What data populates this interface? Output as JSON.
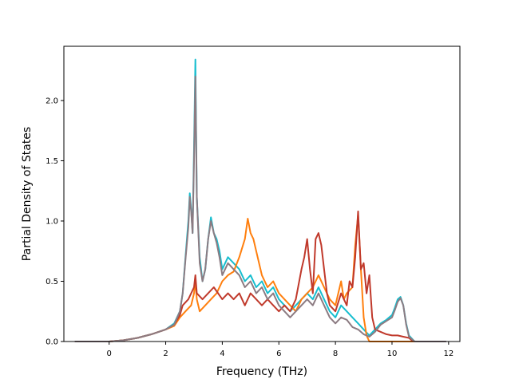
{
  "chart_data": {
    "type": "line",
    "xlabel": "Frequency (THz)",
    "ylabel": "Partial Density of States",
    "xlim": [
      -1.6,
      12.4
    ],
    "ylim": [
      0.0,
      2.45
    ],
    "xticks": [
      "0",
      "2",
      "4",
      "6",
      "8",
      "10",
      "12"
    ],
    "xtick_values": [
      0,
      2,
      4,
      6,
      8,
      10,
      12
    ],
    "yticks": [
      "0.0",
      "0.5",
      "1.0",
      "1.5",
      "2.0"
    ],
    "ytick_values": [
      0.0,
      0.5,
      1.0,
      1.5,
      2.0
    ],
    "grid": false,
    "legend": "none",
    "series": [
      {
        "color": "#17becf",
        "points": [
          [
            -1.1,
            0
          ],
          [
            0,
            0
          ],
          [
            0.5,
            0.01
          ],
          [
            1,
            0.03
          ],
          [
            1.5,
            0.06
          ],
          [
            2,
            0.1
          ],
          [
            2.3,
            0.15
          ],
          [
            2.5,
            0.25
          ],
          [
            2.6,
            0.4
          ],
          [
            2.7,
            0.7
          ],
          [
            2.8,
            1.0
          ],
          [
            2.85,
            1.23
          ],
          [
            2.9,
            1.1
          ],
          [
            2.95,
            0.9
          ],
          [
            3.0,
            1.6
          ],
          [
            3.05,
            2.34
          ],
          [
            3.1,
            1.2
          ],
          [
            3.2,
            0.7
          ],
          [
            3.3,
            0.5
          ],
          [
            3.4,
            0.6
          ],
          [
            3.5,
            0.85
          ],
          [
            3.6,
            1.03
          ],
          [
            3.7,
            0.9
          ],
          [
            3.8,
            0.85
          ],
          [
            3.9,
            0.75
          ],
          [
            4.0,
            0.6
          ],
          [
            4.2,
            0.7
          ],
          [
            4.4,
            0.65
          ],
          [
            4.6,
            0.6
          ],
          [
            4.8,
            0.5
          ],
          [
            5.0,
            0.55
          ],
          [
            5.2,
            0.45
          ],
          [
            5.4,
            0.5
          ],
          [
            5.6,
            0.4
          ],
          [
            5.8,
            0.45
          ],
          [
            6.0,
            0.35
          ],
          [
            6.2,
            0.3
          ],
          [
            6.4,
            0.25
          ],
          [
            6.6,
            0.3
          ],
          [
            6.8,
            0.35
          ],
          [
            7.0,
            0.4
          ],
          [
            7.2,
            0.35
          ],
          [
            7.4,
            0.45
          ],
          [
            7.6,
            0.35
          ],
          [
            7.8,
            0.25
          ],
          [
            8.0,
            0.2
          ],
          [
            8.2,
            0.3
          ],
          [
            8.4,
            0.25
          ],
          [
            8.6,
            0.2
          ],
          [
            8.8,
            0.15
          ],
          [
            9.0,
            0.1
          ],
          [
            9.2,
            0.05
          ],
          [
            9.4,
            0.1
          ],
          [
            9.6,
            0.15
          ],
          [
            9.8,
            0.18
          ],
          [
            10.0,
            0.22
          ],
          [
            10.1,
            0.28
          ],
          [
            10.2,
            0.35
          ],
          [
            10.3,
            0.37
          ],
          [
            10.4,
            0.3
          ],
          [
            10.5,
            0.15
          ],
          [
            10.6,
            0.05
          ],
          [
            10.8,
            0
          ],
          [
            11.0,
            0
          ]
        ]
      },
      {
        "color": "#ff7f0e",
        "points": [
          [
            -1.1,
            0
          ],
          [
            0,
            0
          ],
          [
            0.5,
            0.01
          ],
          [
            1,
            0.03
          ],
          [
            1.5,
            0.06
          ],
          [
            2,
            0.1
          ],
          [
            2.3,
            0.13
          ],
          [
            2.5,
            0.2
          ],
          [
            2.7,
            0.25
          ],
          [
            2.9,
            0.3
          ],
          [
            3.0,
            0.4
          ],
          [
            3.05,
            0.5
          ],
          [
            3.1,
            0.35
          ],
          [
            3.2,
            0.25
          ],
          [
            3.4,
            0.3
          ],
          [
            3.6,
            0.35
          ],
          [
            3.8,
            0.4
          ],
          [
            4.0,
            0.5
          ],
          [
            4.2,
            0.55
          ],
          [
            4.4,
            0.58
          ],
          [
            4.6,
            0.7
          ],
          [
            4.8,
            0.85
          ],
          [
            4.9,
            1.02
          ],
          [
            5.0,
            0.9
          ],
          [
            5.1,
            0.85
          ],
          [
            5.2,
            0.75
          ],
          [
            5.4,
            0.55
          ],
          [
            5.6,
            0.45
          ],
          [
            5.8,
            0.5
          ],
          [
            6.0,
            0.4
          ],
          [
            6.2,
            0.35
          ],
          [
            6.4,
            0.3
          ],
          [
            6.6,
            0.25
          ],
          [
            6.8,
            0.35
          ],
          [
            7.0,
            0.4
          ],
          [
            7.2,
            0.45
          ],
          [
            7.4,
            0.55
          ],
          [
            7.6,
            0.45
          ],
          [
            7.8,
            0.35
          ],
          [
            8.0,
            0.3
          ],
          [
            8.2,
            0.5
          ],
          [
            8.3,
            0.35
          ],
          [
            8.4,
            0.4
          ],
          [
            8.6,
            0.45
          ],
          [
            8.7,
            0.8
          ],
          [
            8.8,
            1.05
          ],
          [
            8.9,
            0.6
          ],
          [
            9.0,
            0.2
          ],
          [
            9.1,
            0.05
          ],
          [
            9.2,
            0
          ],
          [
            11.0,
            0
          ]
        ]
      },
      {
        "color": "#c0392b",
        "points": [
          [
            -1.1,
            0
          ],
          [
            0,
            0
          ],
          [
            0.5,
            0.01
          ],
          [
            1,
            0.03
          ],
          [
            1.5,
            0.06
          ],
          [
            2,
            0.1
          ],
          [
            2.3,
            0.14
          ],
          [
            2.5,
            0.22
          ],
          [
            2.6,
            0.3
          ],
          [
            2.8,
            0.35
          ],
          [
            3.0,
            0.45
          ],
          [
            3.05,
            0.55
          ],
          [
            3.1,
            0.4
          ],
          [
            3.3,
            0.35
          ],
          [
            3.5,
            0.4
          ],
          [
            3.7,
            0.45
          ],
          [
            4.0,
            0.35
          ],
          [
            4.2,
            0.4
          ],
          [
            4.4,
            0.35
          ],
          [
            4.6,
            0.4
          ],
          [
            4.8,
            0.3
          ],
          [
            5.0,
            0.4
          ],
          [
            5.2,
            0.35
          ],
          [
            5.4,
            0.3
          ],
          [
            5.6,
            0.35
          ],
          [
            5.8,
            0.3
          ],
          [
            6.0,
            0.25
          ],
          [
            6.2,
            0.3
          ],
          [
            6.4,
            0.25
          ],
          [
            6.6,
            0.35
          ],
          [
            6.8,
            0.6
          ],
          [
            6.9,
            0.7
          ],
          [
            7.0,
            0.85
          ],
          [
            7.1,
            0.6
          ],
          [
            7.2,
            0.4
          ],
          [
            7.3,
            0.85
          ],
          [
            7.4,
            0.9
          ],
          [
            7.5,
            0.8
          ],
          [
            7.6,
            0.6
          ],
          [
            7.7,
            0.4
          ],
          [
            7.8,
            0.3
          ],
          [
            8.0,
            0.25
          ],
          [
            8.2,
            0.4
          ],
          [
            8.4,
            0.3
          ],
          [
            8.5,
            0.5
          ],
          [
            8.6,
            0.45
          ],
          [
            8.7,
            0.7
          ],
          [
            8.8,
            1.08
          ],
          [
            8.9,
            0.6
          ],
          [
            9.0,
            0.65
          ],
          [
            9.1,
            0.4
          ],
          [
            9.2,
            0.55
          ],
          [
            9.3,
            0.2
          ],
          [
            9.4,
            0.1
          ],
          [
            9.6,
            0.08
          ],
          [
            9.8,
            0.06
          ],
          [
            10.0,
            0.05
          ],
          [
            10.2,
            0.05
          ],
          [
            10.4,
            0.04
          ],
          [
            10.6,
            0.03
          ],
          [
            10.7,
            0.01
          ],
          [
            10.8,
            0
          ],
          [
            11.0,
            0
          ]
        ]
      },
      {
        "color": "#8c7b82",
        "points": [
          [
            -1.2,
            0
          ],
          [
            0,
            0
          ],
          [
            0.5,
            0.01
          ],
          [
            1,
            0.03
          ],
          [
            1.5,
            0.06
          ],
          [
            2,
            0.1
          ],
          [
            2.3,
            0.14
          ],
          [
            2.5,
            0.25
          ],
          [
            2.6,
            0.4
          ],
          [
            2.7,
            0.68
          ],
          [
            2.8,
            0.95
          ],
          [
            2.85,
            1.2
          ],
          [
            2.9,
            1.08
          ],
          [
            2.95,
            0.9
          ],
          [
            3.0,
            1.5
          ],
          [
            3.05,
            2.2
          ],
          [
            3.1,
            1.2
          ],
          [
            3.2,
            0.65
          ],
          [
            3.3,
            0.5
          ],
          [
            3.4,
            0.6
          ],
          [
            3.5,
            0.85
          ],
          [
            3.6,
            1.0
          ],
          [
            3.7,
            0.9
          ],
          [
            3.8,
            0.82
          ],
          [
            3.9,
            0.7
          ],
          [
            4.0,
            0.55
          ],
          [
            4.2,
            0.65
          ],
          [
            4.4,
            0.6
          ],
          [
            4.6,
            0.55
          ],
          [
            4.8,
            0.45
          ],
          [
            5.0,
            0.5
          ],
          [
            5.2,
            0.4
          ],
          [
            5.4,
            0.45
          ],
          [
            5.6,
            0.35
          ],
          [
            5.8,
            0.4
          ],
          [
            6.0,
            0.3
          ],
          [
            6.2,
            0.25
          ],
          [
            6.4,
            0.2
          ],
          [
            6.6,
            0.25
          ],
          [
            6.8,
            0.3
          ],
          [
            7.0,
            0.35
          ],
          [
            7.2,
            0.3
          ],
          [
            7.4,
            0.4
          ],
          [
            7.6,
            0.3
          ],
          [
            7.8,
            0.2
          ],
          [
            8.0,
            0.15
          ],
          [
            8.2,
            0.2
          ],
          [
            8.4,
            0.18
          ],
          [
            8.6,
            0.12
          ],
          [
            8.8,
            0.1
          ],
          [
            9.0,
            0.06
          ],
          [
            9.2,
            0.04
          ],
          [
            9.4,
            0.08
          ],
          [
            9.6,
            0.14
          ],
          [
            9.8,
            0.17
          ],
          [
            10.0,
            0.2
          ],
          [
            10.1,
            0.26
          ],
          [
            10.2,
            0.33
          ],
          [
            10.3,
            0.36
          ],
          [
            10.4,
            0.3
          ],
          [
            10.5,
            0.14
          ],
          [
            10.6,
            0.04
          ],
          [
            10.8,
            0
          ],
          [
            11.9,
            0
          ]
        ]
      }
    ]
  }
}
